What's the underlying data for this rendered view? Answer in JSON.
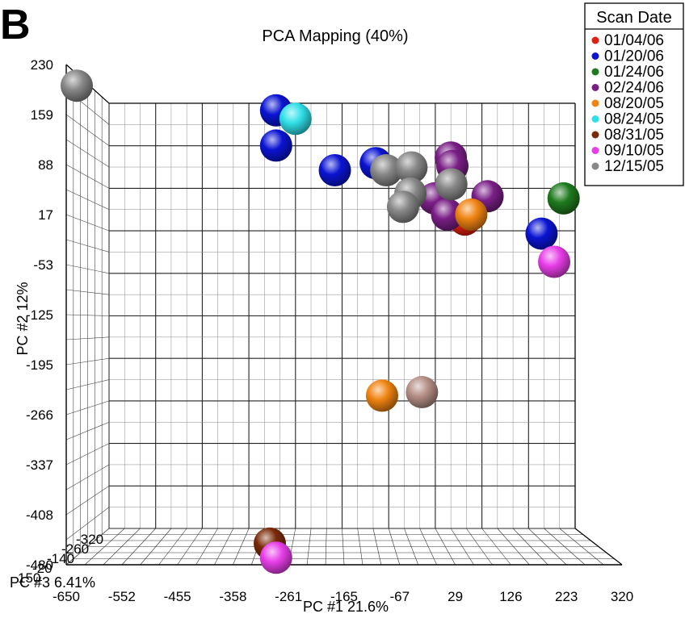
{
  "panel_label": "B",
  "chart_data": {
    "type": "scatter",
    "title": "PCA Mapping (40%)",
    "xlabel": "PC #1 21.6%",
    "ylabel": "PC #2  12%",
    "zlabel": "PC #3  6.41%",
    "xlim": [
      -650,
      320
    ],
    "ylim": [
      -480,
      230
    ],
    "x_ticks": [
      "-650",
      "-552",
      "-455",
      "-358",
      "-261",
      "-165",
      "-67",
      "29",
      "126",
      "223",
      "320"
    ],
    "y_ticks": [
      "230",
      "159",
      "88",
      "17",
      "-53",
      "-125",
      "-195",
      "-266",
      "-337",
      "-408",
      "-480"
    ],
    "z_ticks": [
      "150",
      "-20",
      "-140",
      "-260",
      "-320"
    ],
    "grid": true,
    "legend": {
      "title": "Scan Date",
      "placement": "top-right"
    },
    "series": [
      {
        "name": "01/04/06",
        "color": "#e02010",
        "points": [
          {
            "x": 110,
            "y": 10
          }
        ]
      },
      {
        "name": "01/20/06",
        "color": "#0a14d2",
        "points": [
          {
            "x": -250,
            "y": 165
          },
          {
            "x": -250,
            "y": 115
          },
          {
            "x": -138,
            "y": 80
          },
          {
            "x": -60,
            "y": 90
          },
          {
            "x": 256,
            "y": -10
          }
        ]
      },
      {
        "name": "01/24/06",
        "color": "#1f7a1f",
        "points": [
          {
            "x": 298,
            "y": 40
          }
        ]
      },
      {
        "name": "02/24/06",
        "color": "#7a1f86",
        "points": [
          {
            "x": 83,
            "y": 98
          },
          {
            "x": 86,
            "y": 86
          },
          {
            "x": 52,
            "y": 40
          },
          {
            "x": 76,
            "y": 17
          },
          {
            "x": 153,
            "y": 43
          }
        ]
      },
      {
        "name": "08/20/05",
        "color": "#f08412",
        "points": [
          {
            "x": 122,
            "y": 17
          },
          {
            "x": -48,
            "y": -240
          }
        ]
      },
      {
        "name": "08/24/05",
        "color": "#30e0e8",
        "points": [
          {
            "x": -213,
            "y": 153
          }
        ]
      },
      {
        "name": "08/31/05",
        "color": "#7a2a08",
        "points": [
          {
            "x": -262,
            "y": -450
          }
        ]
      },
      {
        "name": "09/10/05",
        "color": "#e83ee8",
        "points": [
          {
            "x": 280,
            "y": -50
          },
          {
            "x": -250,
            "y": -470
          }
        ]
      },
      {
        "name": "12/15/05",
        "color": "#888888",
        "points": [
          {
            "x": -630,
            "y": 200
          },
          {
            "x": -40,
            "y": 80
          },
          {
            "x": 8,
            "y": 84
          },
          {
            "x": 6,
            "y": 47
          },
          {
            "x": -8,
            "y": 28
          },
          {
            "x": 84,
            "y": 60
          }
        ]
      },
      {
        "name": "",
        "color": "#b58f86",
        "points": [
          {
            "x": 28,
            "y": -235
          }
        ]
      }
    ]
  }
}
